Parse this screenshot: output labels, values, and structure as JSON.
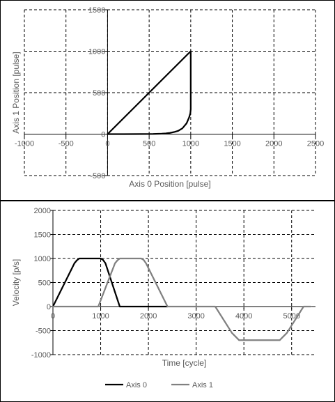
{
  "chart_data": [
    {
      "type": "line",
      "title": "",
      "xlabel": "Axis 0 Position [pulse]",
      "ylabel": "Axis 1 Position [pulse]",
      "xlim": [
        -1000,
        2500
      ],
      "ylim": [
        -500,
        1500
      ],
      "x_ticks": [
        -1000,
        -500,
        0,
        500,
        1000,
        1500,
        2000,
        2500
      ],
      "y_ticks": [
        -500,
        0,
        500,
        1000,
        1500
      ],
      "grid": true,
      "legend": "none",
      "series": [
        {
          "color": "#000000",
          "points": [
            [
              0,
              0
            ],
            [
              200,
              0
            ],
            [
              400,
              1
            ],
            [
              550,
              2
            ],
            [
              650,
              5
            ],
            [
              700,
              8
            ],
            [
              750,
              15
            ],
            [
              800,
              25
            ],
            [
              850,
              40
            ],
            [
              900,
              70
            ],
            [
              950,
              130
            ],
            [
              980,
              200
            ],
            [
              995,
              250
            ],
            [
              1000,
              300
            ],
            [
              1000,
              500
            ],
            [
              1000,
              1000
            ],
            [
              750,
              750
            ],
            [
              500,
              500
            ],
            [
              250,
              250
            ],
            [
              0,
              0
            ]
          ]
        }
      ]
    },
    {
      "type": "line",
      "title": "",
      "xlabel": "Time [cycle]",
      "ylabel": "Velocity [p/s]",
      "xlim": [
        0,
        5500
      ],
      "ylim": [
        -1000,
        2000
      ],
      "x_ticks": [
        0,
        1000,
        2000,
        3000,
        4000,
        5000
      ],
      "y_ticks": [
        -1000,
        -500,
        0,
        500,
        1000,
        1500,
        2000
      ],
      "grid": true,
      "legend": "bottom",
      "series": [
        {
          "name": "Axis 0",
          "color": "#000000",
          "points": [
            [
              0,
              0
            ],
            [
              450,
              900
            ],
            [
              500,
              960
            ],
            [
              550,
              1000
            ],
            [
              1000,
              1000
            ],
            [
              1050,
              970
            ],
            [
              1100,
              900
            ],
            [
              1400,
              0
            ],
            [
              2400,
              0
            ]
          ]
        },
        {
          "name": "Axis 1",
          "color": "#808080",
          "points": [
            [
              0,
              0
            ],
            [
              950,
              0
            ],
            [
              1300,
              900
            ],
            [
              1350,
              960
            ],
            [
              1400,
              1000
            ],
            [
              1850,
              1000
            ],
            [
              1900,
              970
            ],
            [
              1950,
              900
            ],
            [
              2400,
              0
            ],
            [
              3400,
              0
            ],
            [
              3750,
              -550
            ],
            [
              3850,
              -650
            ],
            [
              3900,
              -700
            ],
            [
              4750,
              -700
            ],
            [
              4800,
              -650
            ],
            [
              4900,
              -550
            ],
            [
              5250,
              0
            ],
            [
              5400,
              0
            ]
          ]
        }
      ]
    }
  ]
}
